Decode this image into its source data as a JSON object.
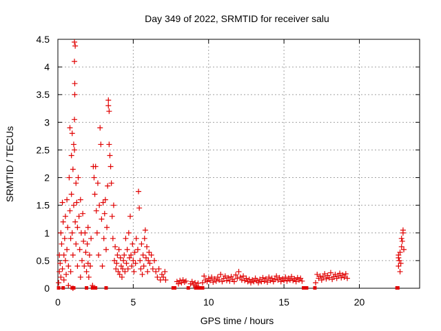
{
  "chart_data": {
    "type": "scatter",
    "title": "Day 349 of 2022, SRMTID for receiver salu",
    "xlabel": "GPS time / hours",
    "ylabel": "SRMTID / TECUs",
    "xlim": [
      0,
      24
    ],
    "ylim": [
      0,
      4.5
    ],
    "x_ticks": [
      0,
      5,
      10,
      15,
      20
    ],
    "x_tick_labels": [
      "0",
      "5",
      "10",
      "15",
      "20"
    ],
    "y_ticks": [
      0,
      0.5,
      1,
      1.5,
      2,
      2.5,
      3,
      3.5,
      4,
      4.5
    ],
    "y_tick_labels": [
      "0",
      "0.5",
      "1",
      "1.5",
      "2",
      "2.5",
      "3",
      "3.5",
      "4",
      "4.5"
    ],
    "grid": true,
    "marker": "+",
    "color": "#e00000",
    "series": [
      {
        "name": "SRMTID",
        "points": [
          [
            0.05,
            0.1
          ],
          [
            0.1,
            0.3
          ],
          [
            0.1,
            0.6
          ],
          [
            0.15,
            0.45
          ],
          [
            0.2,
            1.0
          ],
          [
            0.2,
            0.2
          ],
          [
            0.25,
            0.8
          ],
          [
            0.3,
            1.55
          ],
          [
            0.3,
            0.35
          ],
          [
            0.35,
            1.2
          ],
          [
            0.4,
            0.6
          ],
          [
            0.4,
            0.15
          ],
          [
            0.45,
            0.9
          ],
          [
            0.5,
            1.3
          ],
          [
            0.5,
            0.5
          ],
          [
            0.55,
            0.25
          ],
          [
            0.6,
            1.6
          ],
          [
            0.6,
            0.7
          ],
          [
            0.65,
            1.1
          ],
          [
            0.7,
            0.4
          ],
          [
            0.7,
            0.05
          ],
          [
            0.75,
            2.0
          ],
          [
            0.8,
            2.9
          ],
          [
            0.8,
            1.4
          ],
          [
            0.85,
            0.9
          ],
          [
            0.85,
            0.3
          ],
          [
            0.9,
            2.4
          ],
          [
            0.9,
            1.7
          ],
          [
            0.95,
            1.0
          ],
          [
            0.95,
            2.8
          ],
          [
            1.0,
            2.15
          ],
          [
            1.0,
            0.6
          ],
          [
            1.0,
            0.0
          ],
          [
            1.05,
            1.5
          ],
          [
            1.05,
            2.6
          ],
          [
            1.1,
            4.45
          ],
          [
            1.1,
            4.1
          ],
          [
            1.1,
            3.05
          ],
          [
            1.1,
            2.5
          ],
          [
            1.12,
            3.7
          ],
          [
            1.12,
            3.5
          ],
          [
            1.15,
            4.38
          ],
          [
            1.15,
            1.2
          ],
          [
            1.2,
            0.8
          ],
          [
            1.2,
            1.9
          ],
          [
            1.25,
            1.55
          ],
          [
            1.3,
            0.4
          ],
          [
            1.3,
            1.1
          ],
          [
            1.35,
            2.0
          ],
          [
            1.4,
            1.3
          ],
          [
            1.45,
            0.7
          ],
          [
            1.5,
            1.6
          ],
          [
            1.5,
            0.2
          ],
          [
            1.55,
            1.0
          ],
          [
            1.6,
            0.5
          ],
          [
            1.65,
            1.35
          ],
          [
            1.7,
            0.85
          ],
          [
            1.75,
            0.4
          ],
          [
            1.8,
            1.0
          ],
          [
            1.85,
            0.65
          ],
          [
            1.9,
            0.3
          ],
          [
            1.95,
            0.8
          ],
          [
            2.0,
            0.45
          ],
          [
            2.0,
            1.1
          ],
          [
            2.05,
            0.2
          ],
          [
            2.1,
            0.6
          ],
          [
            2.15,
            0.4
          ],
          [
            2.2,
            0.9
          ],
          [
            2.3,
            0.05
          ],
          [
            2.35,
            2.2
          ],
          [
            2.4,
            2.0
          ],
          [
            2.45,
            1.7
          ],
          [
            2.5,
            2.2
          ],
          [
            2.55,
            1.4
          ],
          [
            2.6,
            1.0
          ],
          [
            2.65,
            1.9
          ],
          [
            2.7,
            0.6
          ],
          [
            2.75,
            1.5
          ],
          [
            2.8,
            2.9
          ],
          [
            2.85,
            2.6
          ],
          [
            2.9,
            1.25
          ],
          [
            2.95,
            0.4
          ],
          [
            3.0,
            1.55
          ],
          [
            3.05,
            0.9
          ],
          [
            3.1,
            1.35
          ],
          [
            3.15,
            1.6
          ],
          [
            3.2,
            0.7
          ],
          [
            3.25,
            1.1
          ],
          [
            3.3,
            1.85
          ],
          [
            3.35,
            3.4
          ],
          [
            3.35,
            3.3
          ],
          [
            3.4,
            3.2
          ],
          [
            3.4,
            2.6
          ],
          [
            3.45,
            2.4
          ],
          [
            3.5,
            2.2
          ],
          [
            3.55,
            1.9
          ],
          [
            3.6,
            1.3
          ],
          [
            3.65,
            0.9
          ],
          [
            3.7,
            1.5
          ],
          [
            3.75,
            0.5
          ],
          [
            3.8,
            0.75
          ],
          [
            3.85,
            0.35
          ],
          [
            3.9,
            0.45
          ],
          [
            3.95,
            0.6
          ],
          [
            4.0,
            0.3
          ],
          [
            4.05,
            0.7
          ],
          [
            4.1,
            0.25
          ],
          [
            4.15,
            0.55
          ],
          [
            4.2,
            0.4
          ],
          [
            4.25,
            0.2
          ],
          [
            4.3,
            0.35
          ],
          [
            4.35,
            0.5
          ],
          [
            4.4,
            0.6
          ],
          [
            4.45,
            0.3
          ],
          [
            4.5,
            0.9
          ],
          [
            4.55,
            0.45
          ],
          [
            4.6,
            0.7
          ],
          [
            4.65,
            0.35
          ],
          [
            4.7,
            1.0
          ],
          [
            4.75,
            0.55
          ],
          [
            4.8,
            1.3
          ],
          [
            4.85,
            0.6
          ],
          [
            4.9,
            0.4
          ],
          [
            4.95,
            0.8
          ],
          [
            5.0,
            0.5
          ],
          [
            5.05,
            0.3
          ],
          [
            5.1,
            0.65
          ],
          [
            5.15,
            0.45
          ],
          [
            5.2,
            0.9
          ],
          [
            5.3,
            0.7
          ],
          [
            5.35,
            1.75
          ],
          [
            5.4,
            1.45
          ],
          [
            5.45,
            0.5
          ],
          [
            5.5,
            0.35
          ],
          [
            5.55,
            0.8
          ],
          [
            5.6,
            0.25
          ],
          [
            5.65,
            0.6
          ],
          [
            5.7,
            0.4
          ],
          [
            5.75,
            0.9
          ],
          [
            5.8,
            1.05
          ],
          [
            5.85,
            0.55
          ],
          [
            5.9,
            0.75
          ],
          [
            5.95,
            0.3
          ],
          [
            6.0,
            0.5
          ],
          [
            6.05,
            0.65
          ],
          [
            6.1,
            0.45
          ],
          [
            6.2,
            0.6
          ],
          [
            6.3,
            0.35
          ],
          [
            6.4,
            0.5
          ],
          [
            6.5,
            0.3
          ],
          [
            6.6,
            0.2
          ],
          [
            6.7,
            0.35
          ],
          [
            6.8,
            0.15
          ],
          [
            6.9,
            0.25
          ],
          [
            7.0,
            0.2
          ],
          [
            7.1,
            0.3
          ],
          [
            7.15,
            0.15
          ],
          [
            7.9,
            0.12
          ],
          [
            8.0,
            0.08
          ],
          [
            8.1,
            0.14
          ],
          [
            8.2,
            0.1
          ],
          [
            8.3,
            0.15
          ],
          [
            8.4,
            0.11
          ],
          [
            8.5,
            0.13
          ],
          [
            8.8,
            0.08
          ],
          [
            8.9,
            0.12
          ],
          [
            9.0,
            0.06
          ],
          [
            9.1,
            0.1
          ],
          [
            9.2,
            0.05
          ],
          [
            9.3,
            0.09
          ],
          [
            9.6,
            0.1
          ],
          [
            9.7,
            0.22
          ],
          [
            9.8,
            0.15
          ],
          [
            9.9,
            0.12
          ],
          [
            10.0,
            0.18
          ],
          [
            10.1,
            0.14
          ],
          [
            10.2,
            0.2
          ],
          [
            10.3,
            0.11
          ],
          [
            10.4,
            0.17
          ],
          [
            10.5,
            0.13
          ],
          [
            10.6,
            0.2
          ],
          [
            10.7,
            0.15
          ],
          [
            10.8,
            0.25
          ],
          [
            10.9,
            0.12
          ],
          [
            11.0,
            0.18
          ],
          [
            11.1,
            0.22
          ],
          [
            11.2,
            0.14
          ],
          [
            11.3,
            0.19
          ],
          [
            11.4,
            0.13
          ],
          [
            11.5,
            0.21
          ],
          [
            11.6,
            0.16
          ],
          [
            11.7,
            0.12
          ],
          [
            11.8,
            0.24
          ],
          [
            11.9,
            0.18
          ],
          [
            12.0,
            0.3
          ],
          [
            12.1,
            0.2
          ],
          [
            12.2,
            0.15
          ],
          [
            12.3,
            0.22
          ],
          [
            12.4,
            0.14
          ],
          [
            12.5,
            0.18
          ],
          [
            12.6,
            0.12
          ],
          [
            12.7,
            0.16
          ],
          [
            12.8,
            0.1
          ],
          [
            12.9,
            0.15
          ],
          [
            13.0,
            0.12
          ],
          [
            13.1,
            0.18
          ],
          [
            13.2,
            0.14
          ],
          [
            13.3,
            0.1
          ],
          [
            13.4,
            0.16
          ],
          [
            13.5,
            0.12
          ],
          [
            13.6,
            0.19
          ],
          [
            13.7,
            0.13
          ],
          [
            13.8,
            0.17
          ],
          [
            13.9,
            0.11
          ],
          [
            14.0,
            0.2
          ],
          [
            14.1,
            0.14
          ],
          [
            14.2,
            0.18
          ],
          [
            14.3,
            0.12
          ],
          [
            14.4,
            0.16
          ],
          [
            14.5,
            0.22
          ],
          [
            14.6,
            0.15
          ],
          [
            14.7,
            0.19
          ],
          [
            14.8,
            0.12
          ],
          [
            14.9,
            0.17
          ],
          [
            15.0,
            0.14
          ],
          [
            15.1,
            0.2
          ],
          [
            15.2,
            0.13
          ],
          [
            15.3,
            0.18
          ],
          [
            15.4,
            0.15
          ],
          [
            15.5,
            0.21
          ],
          [
            15.6,
            0.14
          ],
          [
            15.7,
            0.17
          ],
          [
            15.8,
            0.12
          ],
          [
            15.9,
            0.19
          ],
          [
            16.0,
            0.15
          ],
          [
            16.1,
            0.18
          ],
          [
            16.2,
            0.13
          ],
          [
            17.1,
            0.1
          ],
          [
            17.2,
            0.25
          ],
          [
            17.3,
            0.18
          ],
          [
            17.4,
            0.22
          ],
          [
            17.5,
            0.15
          ],
          [
            17.6,
            0.2
          ],
          [
            17.7,
            0.26
          ],
          [
            17.8,
            0.17
          ],
          [
            17.9,
            0.23
          ],
          [
            18.0,
            0.19
          ],
          [
            18.1,
            0.28
          ],
          [
            18.2,
            0.16
          ],
          [
            18.3,
            0.21
          ],
          [
            18.4,
            0.25
          ],
          [
            18.5,
            0.18
          ],
          [
            18.6,
            0.22
          ],
          [
            18.7,
            0.27
          ],
          [
            18.8,
            0.19
          ],
          [
            18.9,
            0.24
          ],
          [
            19.0,
            0.2
          ],
          [
            19.1,
            0.26
          ],
          [
            19.2,
            0.18
          ],
          [
            22.6,
            0.4
          ],
          [
            22.6,
            0.55
          ],
          [
            22.6,
            0.6
          ],
          [
            22.65,
            0.5
          ],
          [
            22.7,
            0.3
          ],
          [
            22.7,
            0.65
          ],
          [
            22.75,
            0.45
          ],
          [
            22.8,
            0.75
          ],
          [
            22.8,
            0.9
          ],
          [
            22.85,
            0.85
          ],
          [
            22.9,
            1.0
          ],
          [
            22.9,
            1.05
          ],
          [
            22.95,
            0.7
          ]
        ],
        "zero_values": [
          [
            0.05,
            0
          ],
          [
            0.35,
            0
          ],
          [
            0.95,
            0
          ],
          [
            1.05,
            0
          ],
          [
            1.9,
            0
          ],
          [
            2.3,
            0
          ],
          [
            2.5,
            0
          ],
          [
            3.2,
            0
          ],
          [
            7.65,
            0
          ],
          [
            7.75,
            0
          ],
          [
            8.65,
            0
          ],
          [
            9.15,
            0
          ],
          [
            9.35,
            0
          ],
          [
            9.45,
            0
          ],
          [
            9.6,
            0
          ],
          [
            16.3,
            0
          ],
          [
            16.5,
            0
          ],
          [
            17.05,
            0
          ],
          [
            22.5,
            0
          ],
          [
            22.55,
            0
          ]
        ]
      }
    ]
  }
}
